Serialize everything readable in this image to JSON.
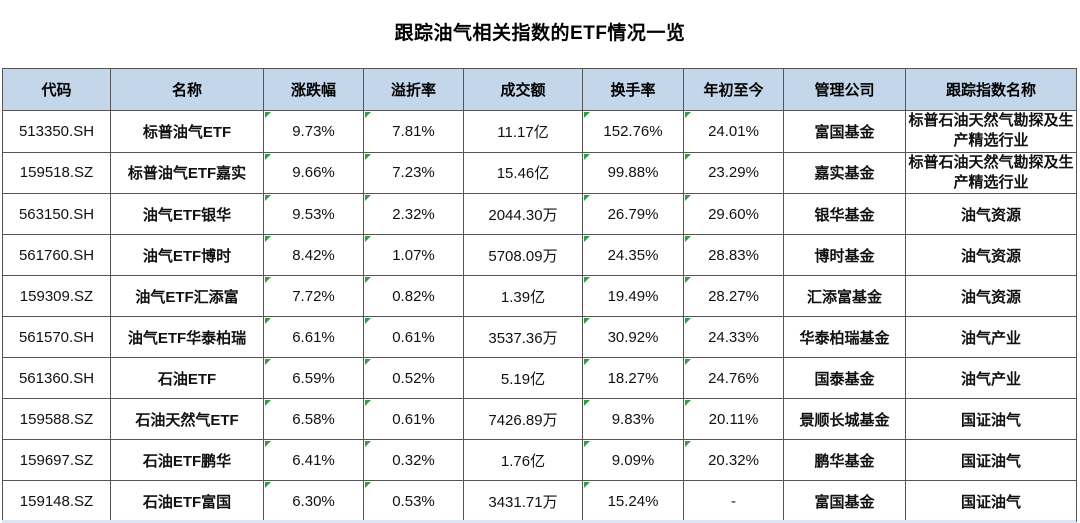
{
  "title": "跟踪油气相关指数的ETF情况一览",
  "table": {
    "columns": [
      "代码",
      "名称",
      "涨跌幅",
      "溢折率",
      "成交额",
      "换手率",
      "年初至今",
      "管理公司",
      "跟踪指数名称"
    ],
    "rows": [
      [
        "513350.SH",
        "标普油气ETF",
        "9.73%",
        "7.81%",
        "11.17亿",
        "152.76%",
        "24.01%",
        "富国基金",
        "标普石油天然气勘探及生产精选行业"
      ],
      [
        "159518.SZ",
        "标普油气ETF嘉实",
        "9.66%",
        "7.23%",
        "15.46亿",
        "99.88%",
        "23.29%",
        "嘉实基金",
        "标普石油天然气勘探及生产精选行业"
      ],
      [
        "563150.SH",
        "油气ETF银华",
        "9.53%",
        "2.32%",
        "2044.30万",
        "26.79%",
        "29.60%",
        "银华基金",
        "油气资源"
      ],
      [
        "561760.SH",
        "油气ETF博时",
        "8.42%",
        "1.07%",
        "5708.09万",
        "24.35%",
        "28.83%",
        "博时基金",
        "油气资源"
      ],
      [
        "159309.SZ",
        "油气ETF汇添富",
        "7.72%",
        "0.82%",
        "1.39亿",
        "19.49%",
        "28.27%",
        "汇添富基金",
        "油气资源"
      ],
      [
        "561570.SH",
        "油气ETF华泰柏瑞",
        "6.61%",
        "0.61%",
        "3537.36万",
        "30.92%",
        "24.33%",
        "华泰柏瑞基金",
        "油气产业"
      ],
      [
        "561360.SH",
        "石油ETF",
        "6.59%",
        "0.52%",
        "5.19亿",
        "18.27%",
        "24.76%",
        "国泰基金",
        "油气产业"
      ],
      [
        "159588.SZ",
        "石油天然气ETF",
        "6.58%",
        "0.61%",
        "7426.89万",
        "9.83%",
        "20.11%",
        "景顺长城基金",
        "国证油气"
      ],
      [
        "159697.SZ",
        "石油ETF鹏华",
        "6.41%",
        "0.32%",
        "1.76亿",
        "9.09%",
        "20.32%",
        "鹏华基金",
        "国证油气"
      ],
      [
        "159148.SZ",
        "石油ETF富国",
        "6.30%",
        "0.53%",
        "3431.71万",
        "15.24%",
        "-",
        "富国基金",
        "国证油气"
      ]
    ],
    "flagged_columns": [
      2,
      3,
      5,
      6
    ],
    "flag_color": "#2f9e44",
    "header_bg": "#c4d7ea",
    "border_color": "#555555",
    "partial_next_row_bg": "#d9e6f3"
  },
  "chart_data": {
    "type": "table",
    "title": "跟踪油气相关指数的ETF情况一览",
    "columns": [
      "代码",
      "名称",
      "涨跌幅",
      "溢折率",
      "成交额",
      "换手率",
      "年初至今",
      "管理公司",
      "跟踪指数名称"
    ],
    "rows": [
      [
        "513350.SH",
        "标普油气ETF",
        "9.73%",
        "7.81%",
        "11.17亿",
        "152.76%",
        "24.01%",
        "富国基金",
        "标普石油天然气勘探及生产精选行业"
      ],
      [
        "159518.SZ",
        "标普油气ETF嘉实",
        "9.66%",
        "7.23%",
        "15.46亿",
        "99.88%",
        "23.29%",
        "嘉实基金",
        "标普石油天然气勘探及生产精选行业"
      ],
      [
        "563150.SH",
        "油气ETF银华",
        "9.53%",
        "2.32%",
        "2044.30万",
        "26.79%",
        "29.60%",
        "银华基金",
        "油气资源"
      ],
      [
        "561760.SH",
        "油气ETF博时",
        "8.42%",
        "1.07%",
        "5708.09万",
        "24.35%",
        "28.83%",
        "博时基金",
        "油气资源"
      ],
      [
        "159309.SZ",
        "油气ETF汇添富",
        "7.72%",
        "0.82%",
        "1.39亿",
        "19.49%",
        "28.27%",
        "汇添富基金",
        "油气资源"
      ],
      [
        "561570.SH",
        "油气ETF华泰柏瑞",
        "6.61%",
        "0.61%",
        "3537.36万",
        "30.92%",
        "24.33%",
        "华泰柏瑞基金",
        "油气产业"
      ],
      [
        "561360.SH",
        "石油ETF",
        "6.59%",
        "0.52%",
        "5.19亿",
        "18.27%",
        "24.76%",
        "国泰基金",
        "油气产业"
      ],
      [
        "159588.SZ",
        "石油天然气ETF",
        "6.58%",
        "0.61%",
        "7426.89万",
        "9.83%",
        "20.11%",
        "景顺长城基金",
        "国证油气"
      ],
      [
        "159697.SZ",
        "石油ETF鹏华",
        "6.41%",
        "0.32%",
        "1.76亿",
        "9.09%",
        "20.32%",
        "鹏华基金",
        "国证油气"
      ],
      [
        "159148.SZ",
        "石油ETF富国",
        "6.30%",
        "0.53%",
        "3431.71万",
        "15.24%",
        "-",
        "富国基金",
        "国证油气"
      ]
    ]
  }
}
